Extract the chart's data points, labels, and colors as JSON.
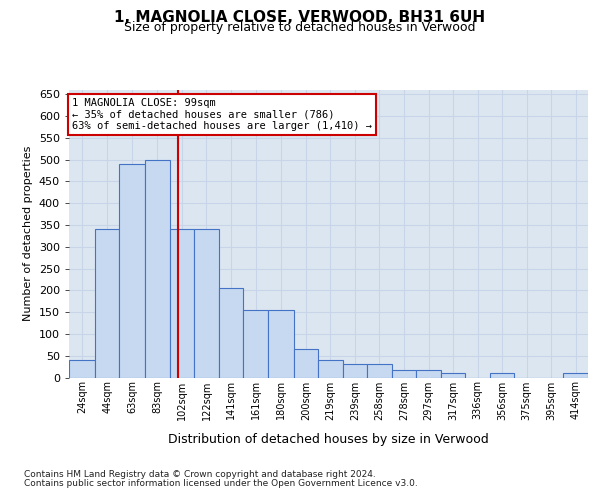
{
  "title": "1, MAGNOLIA CLOSE, VERWOOD, BH31 6UH",
  "subtitle": "Size of property relative to detached houses in Verwood",
  "xlabel": "Distribution of detached houses by size in Verwood",
  "ylabel": "Number of detached properties",
  "footnote1": "Contains HM Land Registry data © Crown copyright and database right 2024.",
  "footnote2": "Contains public sector information licensed under the Open Government Licence v3.0.",
  "property_size": 99,
  "property_label": "1 MAGNOLIA CLOSE: 99sqm",
  "annotation_line1": "← 35% of detached houses are smaller (786)",
  "annotation_line2": "63% of semi-detached houses are larger (1,410) →",
  "bar_color": "#c6d9f0",
  "bar_edge_color": "#4472c4",
  "marker_color": "#cc0000",
  "grid_color": "#c8d4e8",
  "bg_color": "#dce6f1",
  "bin_labels": [
    "24sqm",
    "44sqm",
    "63sqm",
    "83sqm",
    "102sqm",
    "122sqm",
    "141sqm",
    "161sqm",
    "180sqm",
    "200sqm",
    "219sqm",
    "239sqm",
    "258sqm",
    "278sqm",
    "297sqm",
    "317sqm",
    "336sqm",
    "356sqm",
    "375sqm",
    "395sqm",
    "414sqm"
  ],
  "bin_edges": [
    14.5,
    34.5,
    53.5,
    73.5,
    92.5,
    111.5,
    130.5,
    149.5,
    168.5,
    188.5,
    207.5,
    226.5,
    245.5,
    264.5,
    283.5,
    302.5,
    321.5,
    340.5,
    359.5,
    378.5,
    397.5,
    416.5
  ],
  "bar_heights": [
    40,
    340,
    490,
    500,
    340,
    340,
    205,
    155,
    155,
    65,
    40,
    30,
    30,
    18,
    18,
    10,
    0,
    10,
    0,
    0,
    10
  ],
  "ylim": [
    0,
    660
  ],
  "yticks": [
    0,
    50,
    100,
    150,
    200,
    250,
    300,
    350,
    400,
    450,
    500,
    550,
    600,
    650
  ]
}
